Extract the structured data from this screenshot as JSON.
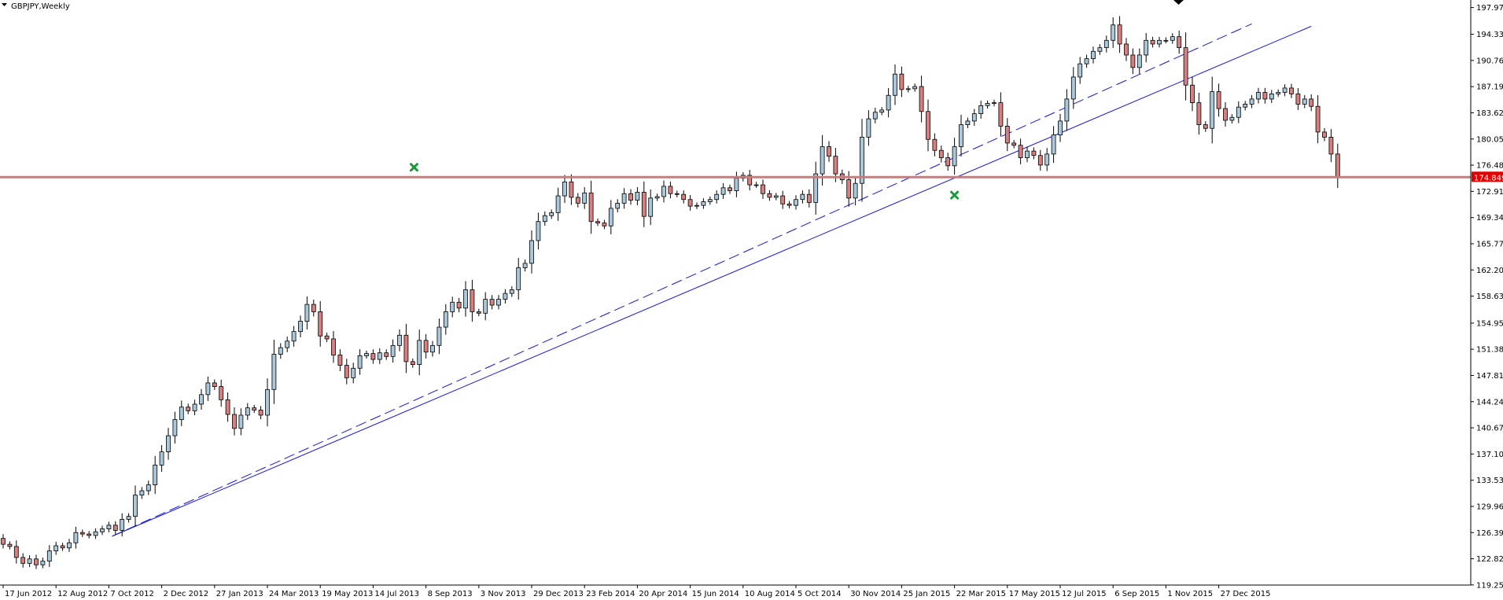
{
  "header": {
    "symbol_title": "GBPJPY,Weekly"
  },
  "chart_data": {
    "type": "candlestick",
    "ylim": [
      119.24,
      199.0
    ],
    "y_ticks": [
      "197.970",
      "194.330",
      "190.760",
      "187.190",
      "183.620",
      "180.050",
      "176.480",
      "172.910",
      "169.340",
      "165.770",
      "162.200",
      "158.630",
      "154.955",
      "151.385",
      "147.815",
      "144.245",
      "140.675",
      "137.105",
      "133.535",
      "129.965",
      "126.395",
      "122.825",
      "119.255"
    ],
    "x_ticks": [
      {
        "label": "17 Jun 2012",
        "t": 0
      },
      {
        "label": "12 Aug 2012",
        "t": 8
      },
      {
        "label": "7 Oct 2012",
        "t": 16
      },
      {
        "label": "2 Dec 2012",
        "t": 24
      },
      {
        "label": "27 Jan 2013",
        "t": 32
      },
      {
        "label": "24 Mar 2013",
        "t": 40
      },
      {
        "label": "19 May 2013",
        "t": 48
      },
      {
        "label": "14 Jul 2013",
        "t": 56
      },
      {
        "label": "8 Sep 2013",
        "t": 64
      },
      {
        "label": "3 Nov 2013",
        "t": 72
      },
      {
        "label": "29 Dec 2013",
        "t": 80
      },
      {
        "label": "23 Feb 2014",
        "t": 88
      },
      {
        "label": "20 Apr 2014",
        "t": 96
      },
      {
        "label": "15 Jun 2014",
        "t": 104
      },
      {
        "label": "10 Aug 2014",
        "t": 112
      },
      {
        "label": "5 Oct 2014",
        "t": 120
      },
      {
        "label": "30 Nov 2014",
        "t": 128
      },
      {
        "label": "25 Jan 2015",
        "t": 136
      },
      {
        "label": "22 Mar 2015",
        "t": 144
      },
      {
        "label": "17 May 2015",
        "t": 152
      },
      {
        "label": "12 Jul 2015",
        "t": 160
      },
      {
        "label": "6 Sep 2015",
        "t": 168
      },
      {
        "label": "1 Nov 2015",
        "t": 176
      },
      {
        "label": "27 Dec 2015",
        "t": 184
      }
    ],
    "closes": [
      124.8,
      124.5,
      123.0,
      122.2,
      122.8,
      122.0,
      122.5,
      123.9,
      124.6,
      124.3,
      125.0,
      126.4,
      126.2,
      126.0,
      126.5,
      126.9,
      127.4,
      126.7,
      128.2,
      128.6,
      131.5,
      132.1,
      132.9,
      135.6,
      137.4,
      139.6,
      141.8,
      143.5,
      143.0,
      143.9,
      145.2,
      146.8,
      146.3,
      144.5,
      142.5,
      140.6,
      142.4,
      143.4,
      143.1,
      142.4,
      145.9,
      150.7,
      151.6,
      152.5,
      153.8,
      155.2,
      157.5,
      156.5,
      153.2,
      152.8,
      150.6,
      149.2,
      147.5,
      148.8,
      150.5,
      150.8,
      150.0,
      150.9,
      150.4,
      151.9,
      153.3,
      149.7,
      149.3,
      152.6,
      151.0,
      151.9,
      154.4,
      156.5,
      157.8,
      157.0,
      159.5,
      156.5,
      156.3,
      158.2,
      157.4,
      158.2,
      159.0,
      159.5,
      162.5,
      163.1,
      166.2,
      168.8,
      169.6,
      170.0,
      172.3,
      174.2,
      172.1,
      171.3,
      172.7,
      168.8,
      168.6,
      168.2,
      170.6,
      171.3,
      172.6,
      171.7,
      172.8,
      169.5,
      172.0,
      172.2,
      173.6,
      172.6,
      172.5,
      171.8,
      170.9,
      171.0,
      171.5,
      171.8,
      172.5,
      173.4,
      173.0,
      174.7,
      175.1,
      173.8,
      173.8,
      172.6,
      172.1,
      172.3,
      171.2,
      171.0,
      171.8,
      172.5,
      171.4,
      175.3,
      179.0,
      177.7,
      175.3,
      174.5,
      172.0,
      174.0,
      180.3,
      182.8,
      183.7,
      184.0,
      186.0,
      188.9,
      186.8,
      186.9,
      187.2,
      183.8,
      180.0,
      178.5,
      177.5,
      176.4,
      179.0,
      182.0,
      182.5,
      183.5,
      184.6,
      184.9,
      185.0,
      181.8,
      179.5,
      179.2,
      177.5,
      178.4,
      177.8,
      176.5,
      178.0,
      180.6,
      182.5,
      185.5,
      188.5,
      190.3,
      191.0,
      192.0,
      192.5,
      193.5,
      195.6,
      193.0,
      191.5,
      189.8,
      191.5,
      193.5,
      193.0,
      193.5,
      193.5,
      194.0,
      192.5,
      187.4,
      185.0,
      182.0,
      181.5,
      186.5,
      184.2,
      182.6,
      183.0,
      184.4,
      184.8,
      185.5,
      186.4,
      185.5,
      186.2,
      186.4,
      187.0,
      186.2,
      184.8,
      185.5,
      184.5,
      181.0,
      180.3,
      178.0,
      174.8
    ]
  }
}
